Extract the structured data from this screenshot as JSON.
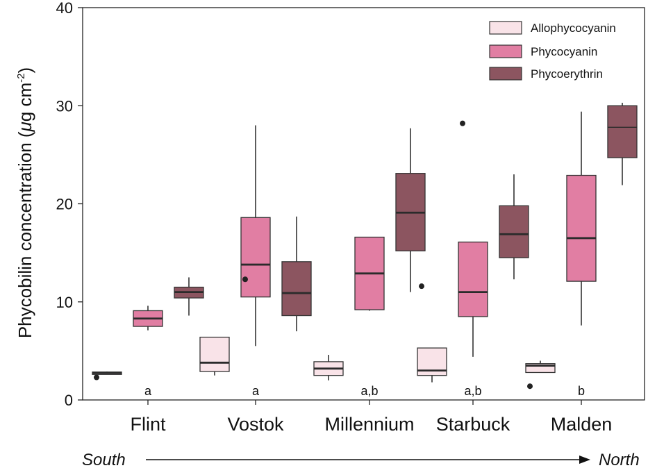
{
  "chart_data": {
    "type": "box",
    "ylabel": "Phycobilin concentration (μg cm⁻²)",
    "ylabel_main": "Phycobilin concentration (",
    "ylabel_mu": "μ",
    "ylabel_unit": "g cm",
    "ylabel_sup": "-2",
    "ylabel_close": ")",
    "ylim": [
      0,
      40
    ],
    "yticks": [
      0,
      10,
      20,
      30,
      40
    ],
    "categories": [
      "Flint",
      "Vostok",
      "Millennium",
      "Starbuck",
      "Malden"
    ],
    "significance": [
      "a",
      "a",
      "a,b",
      "a,b",
      "b"
    ],
    "direction": {
      "start": "South",
      "end": "North"
    },
    "legend_position": "top-right",
    "series": [
      {
        "name": "Allophycocyanin",
        "color": "#f9e3e8",
        "boxes": [
          {
            "whisker_low": 2.6,
            "q1": 2.6,
            "median": 2.75,
            "q3": 2.85,
            "whisker_high": 2.9,
            "outliers": [
              2.3
            ]
          },
          {
            "whisker_low": 2.5,
            "q1": 2.9,
            "median": 3.8,
            "q3": 6.4,
            "whisker_high": 6.4,
            "outliers": []
          },
          {
            "whisker_low": 2.0,
            "q1": 2.5,
            "median": 3.2,
            "q3": 3.9,
            "whisker_high": 4.6,
            "outliers": []
          },
          {
            "whisker_low": 1.8,
            "q1": 2.5,
            "median": 3.0,
            "q3": 5.3,
            "whisker_high": 5.3,
            "outliers": [
              11.6
            ]
          },
          {
            "whisker_low": 2.8,
            "q1": 2.8,
            "median": 3.5,
            "q3": 3.7,
            "whisker_high": 4.0,
            "outliers": [
              1.4
            ]
          }
        ]
      },
      {
        "name": "Phycocyanin",
        "color": "#e17ea3",
        "boxes": [
          {
            "whisker_low": 7.1,
            "q1": 7.5,
            "median": 8.3,
            "q3": 9.1,
            "whisker_high": 9.6,
            "outliers": []
          },
          {
            "whisker_low": 5.5,
            "q1": 10.5,
            "median": 13.8,
            "q3": 18.6,
            "whisker_high": 28.0,
            "outliers": [
              12.3
            ]
          },
          {
            "whisker_low": 9.1,
            "q1": 9.2,
            "median": 12.9,
            "q3": 16.6,
            "whisker_high": 16.6,
            "outliers": []
          },
          {
            "whisker_low": 4.4,
            "q1": 8.5,
            "median": 11.0,
            "q3": 16.1,
            "whisker_high": 16.1,
            "outliers": [
              28.2
            ]
          },
          {
            "whisker_low": 7.6,
            "q1": 12.1,
            "median": 16.5,
            "q3": 22.9,
            "whisker_high": 29.4,
            "outliers": []
          }
        ]
      },
      {
        "name": "Phycoerythrin",
        "color": "#8c5560",
        "boxes": [
          {
            "whisker_low": 8.6,
            "q1": 10.4,
            "median": 11.0,
            "q3": 11.5,
            "whisker_high": 12.5,
            "outliers": []
          },
          {
            "whisker_low": 7.0,
            "q1": 8.6,
            "median": 10.9,
            "q3": 14.1,
            "whisker_high": 18.7,
            "outliers": []
          },
          {
            "whisker_low": 11.0,
            "q1": 15.2,
            "median": 19.1,
            "q3": 23.1,
            "whisker_high": 27.7,
            "outliers": []
          },
          {
            "whisker_low": 12.3,
            "q1": 14.5,
            "median": 16.9,
            "q3": 19.8,
            "whisker_high": 23.0,
            "outliers": []
          },
          {
            "whisker_low": 21.9,
            "q1": 24.7,
            "median": 27.8,
            "q3": 30.0,
            "whisker_high": 30.3,
            "outliers": []
          }
        ]
      }
    ]
  }
}
